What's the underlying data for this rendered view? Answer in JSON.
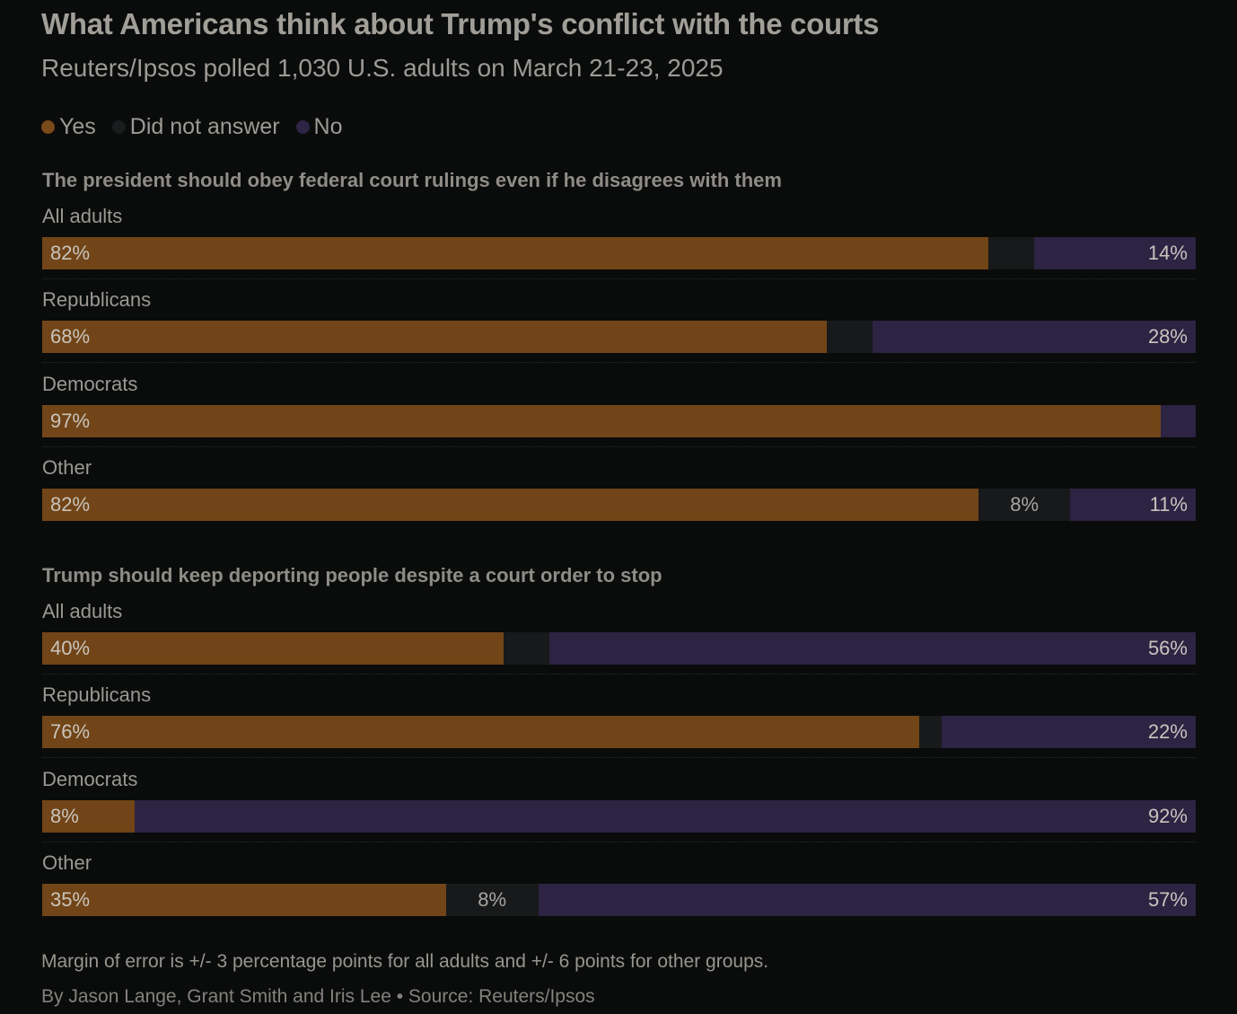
{
  "title": "What Americans think about Trump's conflict with the courts",
  "subtitle": "Reuters/Ipsos polled 1,030 U.S. adults on March 21-23, 2025",
  "legend": [
    {
      "label": "Yes",
      "color": "#7a4a1a"
    },
    {
      "label": "Did not answer",
      "color": "#1b1c1e"
    },
    {
      "label": "No",
      "color": "#2e2445"
    }
  ],
  "colors": {
    "yes": "#714517",
    "dna": "#18191b",
    "no": "#2d2343"
  },
  "note": "Margin of error is +/- 3 percentage points for all adults and +/- 6 points for other groups.",
  "byline": "By Jason Lange, Grant Smith and Iris Lee • Source: Reuters/Ipsos",
  "chart_data": [
    {
      "type": "bar",
      "orientation": "horizontal-stacked-100",
      "title": "The president should obey federal court rulings even if he disagrees with them",
      "categories": [
        "All adults",
        "Republicans",
        "Democrats",
        "Other"
      ],
      "series": [
        {
          "name": "Yes",
          "values": [
            82,
            68,
            97,
            82
          ]
        },
        {
          "name": "Did not answer",
          "values": [
            4,
            4,
            0,
            8
          ]
        },
        {
          "name": "No",
          "values": [
            14,
            28,
            3,
            11
          ]
        }
      ],
      "labels": {
        "Yes": [
          "82%",
          "68%",
          "97%",
          "82%"
        ],
        "Did not answer": [
          "",
          "",
          "",
          "8%"
        ],
        "No": [
          "14%",
          "28%",
          "",
          "11%"
        ]
      }
    },
    {
      "type": "bar",
      "orientation": "horizontal-stacked-100",
      "title": "Trump should keep deporting people despite a court order to stop",
      "categories": [
        "All adults",
        "Republicans",
        "Democrats",
        "Other"
      ],
      "series": [
        {
          "name": "Yes",
          "values": [
            40,
            76,
            8,
            35
          ]
        },
        {
          "name": "Did not answer",
          "values": [
            4,
            2,
            0,
            8
          ]
        },
        {
          "name": "No",
          "values": [
            56,
            22,
            92,
            57
          ]
        }
      ],
      "labels": {
        "Yes": [
          "40%",
          "76%",
          "8%",
          "35%"
        ],
        "Did not answer": [
          "",
          "",
          "",
          "8%"
        ],
        "No": [
          "56%",
          "22%",
          "92%",
          "57%"
        ]
      }
    }
  ]
}
